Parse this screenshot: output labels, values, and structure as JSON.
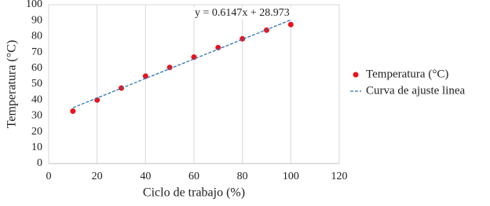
{
  "chart_data": {
    "type": "scatter",
    "xlabel": "Ciclo de trabajo (%)",
    "ylabel": "Temperatura (°C)",
    "annotation": "y = 0.6147x + 28.973",
    "series": [
      {
        "name": "Temperatura (°C)",
        "color": "#e8141b",
        "mode": "markers",
        "x": [
          10,
          20,
          30,
          40,
          50,
          60,
          70,
          80,
          90,
          100
        ],
        "values": [
          33,
          40,
          47.5,
          55,
          60.5,
          67,
          73,
          78.5,
          84,
          87.5
        ]
      },
      {
        "name": "Curva de ajuste linea",
        "color": "#2e75b6",
        "mode": "dashed-line",
        "x": [
          10,
          100
        ],
        "values": [
          35.12,
          90.44
        ]
      }
    ],
    "xlim": [
      0,
      120
    ],
    "xticks": [
      0,
      20,
      40,
      60,
      80,
      100,
      120
    ],
    "ylim": [
      0,
      100
    ],
    "yticks": [
      0,
      10,
      20,
      30,
      40,
      50,
      60,
      70,
      80,
      90,
      100
    ],
    "grid": "x"
  }
}
